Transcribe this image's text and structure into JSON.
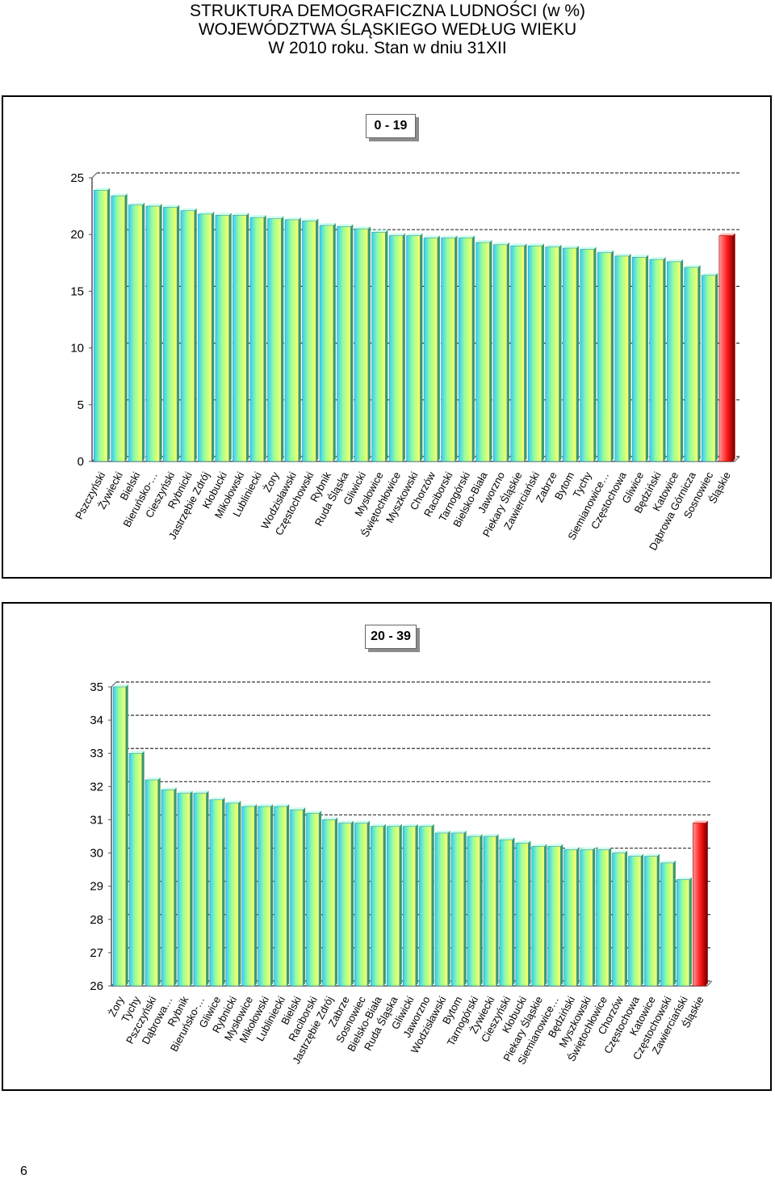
{
  "page": {
    "title_lines": [
      "STRUKTURA DEMOGRAFICZNA LUDNOŚCI (w %)",
      "WOJEWÓDZTWA ŚLĄSKIEGO WEDŁUG WIEKU",
      "W 2010 roku. Stan w dniu 31XII"
    ],
    "page_number": "6"
  },
  "colors": {
    "bar_gradient": [
      "#33ccff",
      "#99ff99",
      "#ffff66"
    ],
    "highlight_bar": "#ff2222",
    "gridline": "#333333"
  },
  "chart_data": [
    {
      "type": "bar",
      "title": "0 - 19",
      "xlabel": "",
      "ylabel": "",
      "ylim": [
        0,
        25
      ],
      "yticks": [
        0,
        5,
        10,
        15,
        20,
        25
      ],
      "grid": true,
      "highlight": "Śląskie",
      "categories": [
        "Pszczyński",
        "Żywiecki",
        "Bielski",
        "Bieruńsko-…",
        "Cieszyński",
        "Rybnicki",
        "Jastrzębie Zdrój",
        "Kłobucki",
        "Mikołowski",
        "Lubliniecki",
        "Żory",
        "Wodzisławski",
        "Częstochowski",
        "Rybnik",
        "Ruda Śląska",
        "Gliwicki",
        "Mysłowice",
        "Świętochłowice",
        "Myszkowski",
        "Chorzów",
        "Raciborski",
        "Tarnogórski",
        "Bielsko-Biała",
        "Jaworzno",
        "Piekary Śląskie",
        "Zawierciański",
        "Zabrze",
        "Bytom",
        "Tychy",
        "Siemianowice…",
        "Częstochowa",
        "Gliwice",
        "Będziński",
        "Katowice",
        "Dąbrowa Górnicza",
        "Sosnowiec",
        "Śląskie"
      ],
      "values": [
        23.9,
        23.4,
        22.6,
        22.5,
        22.4,
        22.1,
        21.8,
        21.7,
        21.7,
        21.5,
        21.4,
        21.3,
        21.2,
        20.8,
        20.7,
        20.5,
        20.2,
        19.9,
        19.9,
        19.7,
        19.7,
        19.7,
        19.3,
        19.1,
        19.0,
        19.0,
        18.9,
        18.8,
        18.7,
        18.4,
        18.1,
        18.0,
        17.8,
        17.6,
        17.1,
        16.4,
        19.9
      ]
    },
    {
      "type": "bar",
      "title": "20 - 39",
      "xlabel": "",
      "ylabel": "",
      "ylim": [
        26,
        35
      ],
      "yticks": [
        26,
        27,
        28,
        29,
        30,
        31,
        32,
        33,
        34,
        35
      ],
      "grid": true,
      "highlight": "Śląskie",
      "categories": [
        "Żory",
        "Tychy",
        "Pszczyński",
        "Dąbrowa…",
        "Rybnik",
        "Bieruńsko-…",
        "Gliwice",
        "Rybnicki",
        "Mysłowice",
        "Mikołowski",
        "Lubliniecki",
        "Bielski",
        "Raciborski",
        "Jastrzębie Zdrój",
        "Zabrze",
        "Sosnowiec",
        "Bielsko-Biała",
        "Ruda Śląska",
        "Gliwicki",
        "Jaworzno",
        "Wodzisławski",
        "Bytom",
        "Tarnogórski",
        "Żywiecki",
        "Cieszyński",
        "Kłobucki",
        "Piekary Śląskie",
        "Siemianowice…",
        "Będziński",
        "Myszkowski",
        "Świętochłowice",
        "Chorzów",
        "Częstochowa",
        "Katowice",
        "Częstochowski",
        "Zawierciański",
        "Śląskie"
      ],
      "values": [
        35.0,
        33.0,
        32.2,
        31.9,
        31.8,
        31.8,
        31.6,
        31.5,
        31.4,
        31.4,
        31.4,
        31.3,
        31.2,
        31.0,
        30.9,
        30.9,
        30.8,
        30.8,
        30.8,
        30.8,
        30.6,
        30.6,
        30.5,
        30.5,
        30.4,
        30.3,
        30.2,
        30.2,
        30.1,
        30.1,
        30.1,
        30.0,
        29.9,
        29.9,
        29.7,
        29.2,
        30.9
      ]
    }
  ]
}
